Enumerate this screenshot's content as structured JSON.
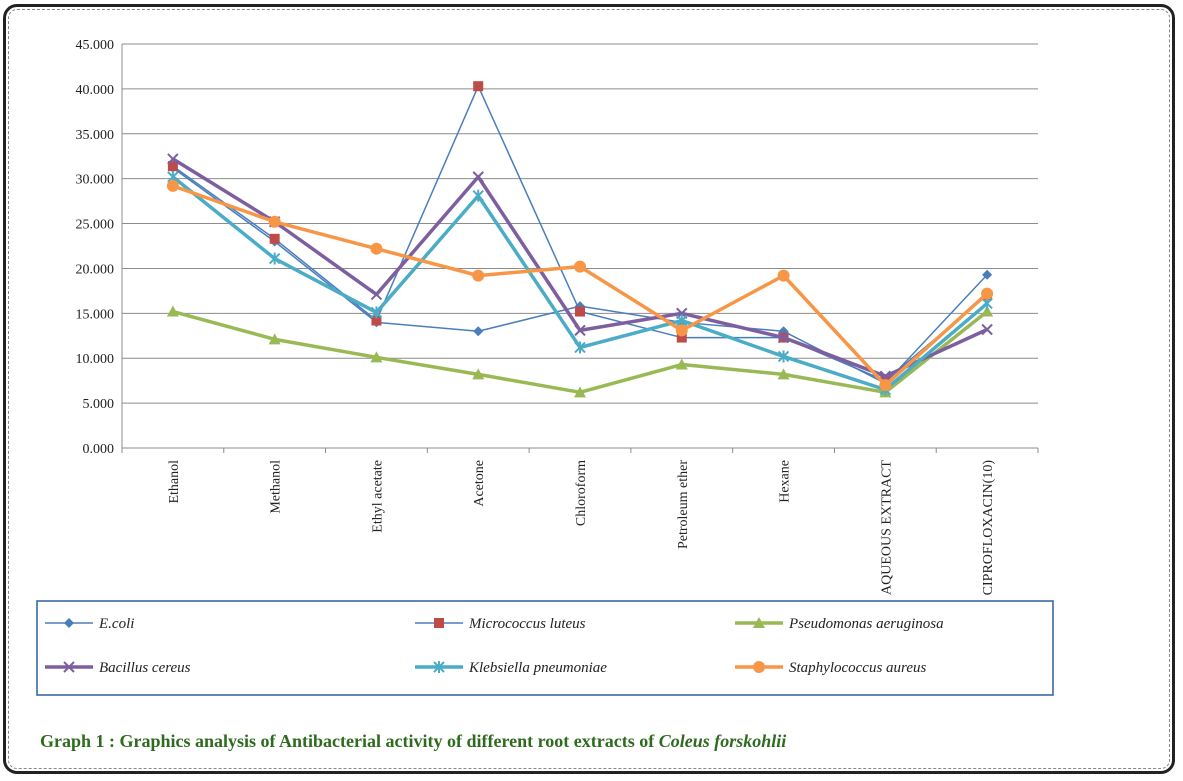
{
  "chart_data": {
    "type": "line",
    "categories": [
      "Ethanol",
      "Methanol",
      "Ethyl acetate",
      "Acetone",
      "Chloroform",
      "Petroleum ether",
      "Hexane",
      "AQUEOUS EXTRACT",
      "CIPROFLOXACIN(10)"
    ],
    "ylim": [
      0,
      45
    ],
    "yticks": [
      "0.000",
      "5.000",
      "10.000",
      "15.000",
      "20.000",
      "25.000",
      "30.000",
      "35.000",
      "40.000",
      "45.000"
    ],
    "grid": "horizontal",
    "legend_position": "bottom",
    "series": [
      {
        "name": "E.coli",
        "color": "#4a7ebb",
        "marker": "diamond",
        "width": 1.5,
        "values": [
          31.2,
          23.0,
          14.0,
          13.0,
          15.8,
          14.0,
          13.0,
          7.2,
          19.3
        ]
      },
      {
        "name": "Micrococcus luteus",
        "color": "#be4b48",
        "line_color": "#4a7ebb",
        "marker": "square",
        "width": 1.5,
        "values": [
          31.4,
          23.3,
          14.2,
          40.3,
          15.2,
          12.3,
          12.3,
          7.5,
          17.0
        ]
      },
      {
        "name": "Pseudomonas aeruginosa",
        "color": "#98b954",
        "marker": "triangle",
        "width": 3.5,
        "values": [
          15.2,
          12.1,
          10.1,
          8.2,
          6.2,
          9.3,
          8.2,
          6.2,
          15.2
        ]
      },
      {
        "name": "Bacillus cereus",
        "color": "#7d5fa0",
        "marker": "x",
        "width": 3.5,
        "values": [
          32.2,
          25.2,
          17.1,
          30.2,
          13.1,
          15.0,
          12.3,
          8.0,
          13.2
        ]
      },
      {
        "name": "Klebsiella pneumoniae",
        "color": "#4aacc6",
        "marker": "star",
        "width": 3.5,
        "values": [
          30.2,
          21.1,
          15.1,
          28.1,
          11.2,
          14.2,
          10.2,
          6.5,
          16.1
        ]
      },
      {
        "name": "Staphylococcus aureus",
        "color": "#f79646",
        "marker": "circle",
        "width": 3.5,
        "values": [
          29.2,
          25.2,
          22.2,
          19.2,
          20.2,
          13.1,
          19.2,
          7.0,
          17.2
        ]
      }
    ]
  },
  "caption": {
    "prefix": "Graph  1 : Graphics  analysis  of  Antibacterial  activity  of  different  root  extracts  of ",
    "species": "Coleus forskohlii"
  }
}
